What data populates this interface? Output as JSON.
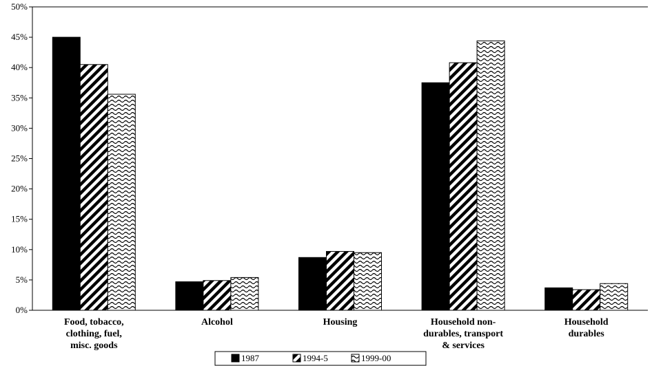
{
  "chart_data": {
    "type": "bar",
    "title": "",
    "xlabel": "",
    "ylabel": "",
    "ylim": [
      0,
      50
    ],
    "yticks": [
      0,
      5,
      10,
      15,
      20,
      25,
      30,
      35,
      40,
      45,
      50
    ],
    "ytick_labels": [
      "0%",
      "5%",
      "10%",
      "15%",
      "20%",
      "25%",
      "30%",
      "35%",
      "40%",
      "45%",
      "50%"
    ],
    "grid": false,
    "legend_position": "bottom",
    "categories": [
      [
        "Food, tobacco,",
        "clothing, fuel,",
        "misc. goods"
      ],
      [
        "Alcohol"
      ],
      [
        "Housing"
      ],
      [
        "Household non-",
        "durables, transport",
        "& services"
      ],
      [
        "Household",
        "durables"
      ]
    ],
    "series": [
      {
        "name": "1987",
        "pattern": "solid",
        "values": [
          45.0,
          4.7,
          8.7,
          37.5,
          3.7
        ]
      },
      {
        "name": "1994-5",
        "pattern": "diagonal-hatch",
        "values": [
          40.5,
          4.9,
          9.7,
          40.8,
          3.4
        ]
      },
      {
        "name": "1999-00",
        "pattern": "wave",
        "values": [
          35.6,
          5.4,
          9.5,
          44.4,
          4.4
        ]
      }
    ]
  }
}
